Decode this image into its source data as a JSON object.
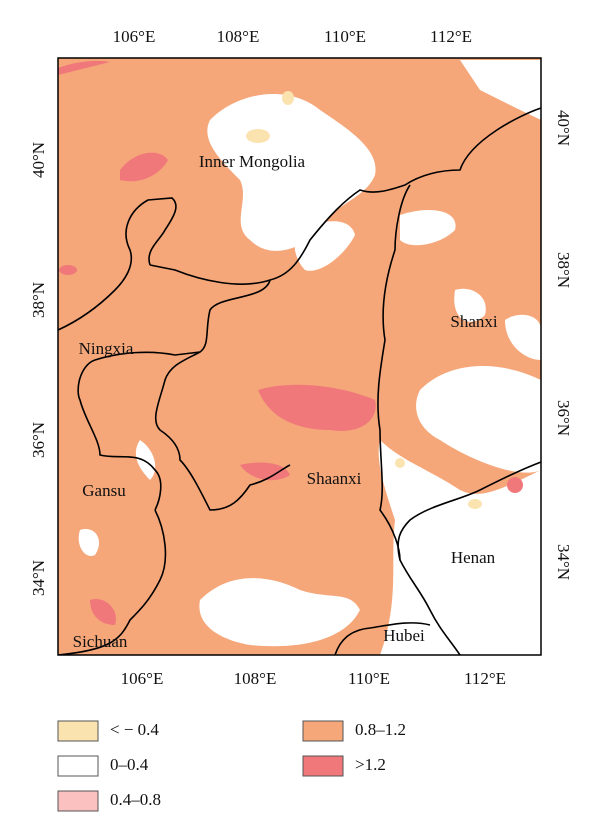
{
  "map": {
    "top_labels": [
      "106°E",
      "108°E",
      "110°E",
      "112°E"
    ],
    "bottom_labels": [
      "106°E",
      "108°E",
      "110°E",
      "112°E"
    ],
    "left_labels": [
      "40°N",
      "38°N",
      "36°N",
      "34°N"
    ],
    "right_labels": [
      "40°N",
      "38°N",
      "36°N",
      "34°N"
    ],
    "regions": [
      "Inner Mongolia",
      "Ningxia",
      "Shanxi",
      "Gansu",
      "Shaanxi",
      "Henan",
      "Sichuan",
      "Hubei"
    ],
    "base_color": "#f5a77a"
  },
  "legend": {
    "items": [
      {
        "label": "< − 0.4",
        "color": "#fbe3b0"
      },
      {
        "label": "0–0.4",
        "color": "#ffffff"
      },
      {
        "label": "0.4–0.8",
        "color": "#fbc0c0"
      },
      {
        "label": "0.8–1.2",
        "color": "#f5a77a"
      },
      {
        "label": ">1.2",
        "color": "#f0787a"
      }
    ]
  }
}
